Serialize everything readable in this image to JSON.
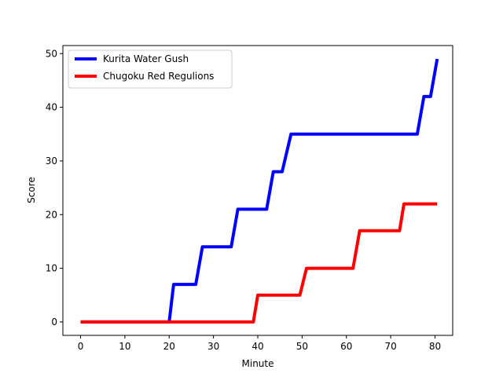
{
  "chart_data": {
    "type": "line",
    "title": "",
    "xlabel": "Minute",
    "ylabel": "Score",
    "xlim": [
      -4,
      84
    ],
    "ylim": [
      -2.5,
      51.5
    ],
    "xticks": [
      0,
      10,
      20,
      30,
      40,
      50,
      60,
      70,
      80
    ],
    "yticks": [
      0,
      10,
      20,
      30,
      40,
      50
    ],
    "grid": false,
    "legend_position": "top-left",
    "series": [
      {
        "name": "Kurita Water Gush",
        "color": "#0000ff",
        "x": [
          0,
          20,
          21,
          26,
          27.5,
          34,
          35.5,
          42,
          43.5,
          45.5,
          47.5,
          76,
          77.5,
          79,
          80.5
        ],
        "y": [
          0,
          0,
          7,
          7,
          14,
          14,
          21,
          21,
          28,
          28,
          35,
          35,
          42,
          42,
          49
        ]
      },
      {
        "name": "Chugoku Red Regulions",
        "color": "#ff0000",
        "x": [
          0,
          39,
          40,
          49.5,
          51,
          61.5,
          63,
          72,
          73,
          80.5
        ],
        "y": [
          0,
          0,
          5,
          5,
          10,
          10,
          17,
          17,
          22,
          22
        ]
      }
    ]
  }
}
